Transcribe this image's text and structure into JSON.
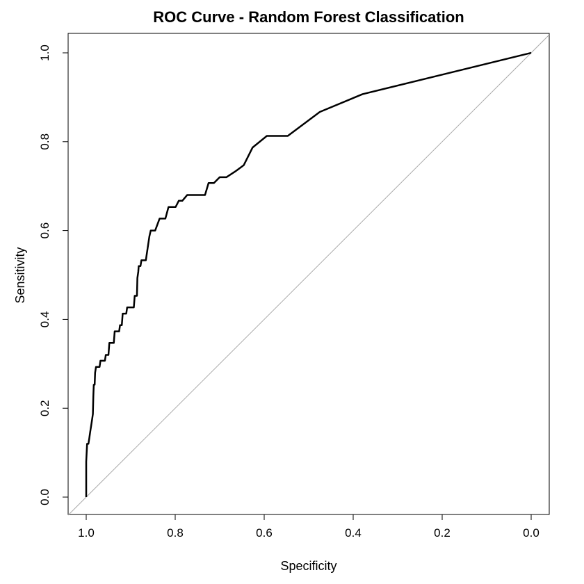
{
  "chart_data": {
    "type": "line",
    "title": "ROC Curve - Random Forest Classification",
    "xlabel": "Specificity",
    "ylabel": "Sensitivity",
    "xlim": [
      1.0,
      0.0
    ],
    "ylim": [
      0.0,
      1.0
    ],
    "x_reversed": true,
    "grid": false,
    "legend": "none",
    "x_ticks": [
      "1.0",
      "0.8",
      "0.6",
      "0.4",
      "0.2",
      "0.0"
    ],
    "y_ticks": [
      "0.0",
      "0.2",
      "0.4",
      "0.6",
      "0.8",
      "1.0"
    ],
    "reference_line": {
      "from": [
        1.0,
        0.0
      ],
      "to": [
        0.0,
        1.0
      ],
      "color": "#aaaaaa"
    },
    "series": [
      {
        "color": "#000000",
        "points": [
          [
            1.0,
            0.0
          ],
          [
            1.0,
            0.08
          ],
          [
            0.998,
            0.12
          ],
          [
            0.995,
            0.12
          ],
          [
            0.993,
            0.133
          ],
          [
            0.991,
            0.147
          ],
          [
            0.989,
            0.16
          ],
          [
            0.987,
            0.173
          ],
          [
            0.985,
            0.187
          ],
          [
            0.984,
            0.227
          ],
          [
            0.983,
            0.253
          ],
          [
            0.981,
            0.253
          ],
          [
            0.98,
            0.28
          ],
          [
            0.978,
            0.293
          ],
          [
            0.97,
            0.293
          ],
          [
            0.968,
            0.307
          ],
          [
            0.958,
            0.307
          ],
          [
            0.956,
            0.32
          ],
          [
            0.95,
            0.32
          ],
          [
            0.948,
            0.347
          ],
          [
            0.938,
            0.347
          ],
          [
            0.936,
            0.373
          ],
          [
            0.926,
            0.373
          ],
          [
            0.924,
            0.387
          ],
          [
            0.92,
            0.387
          ],
          [
            0.918,
            0.413
          ],
          [
            0.91,
            0.413
          ],
          [
            0.908,
            0.427
          ],
          [
            0.893,
            0.427
          ],
          [
            0.891,
            0.453
          ],
          [
            0.886,
            0.453
          ],
          [
            0.885,
            0.493
          ],
          [
            0.883,
            0.507
          ],
          [
            0.882,
            0.52
          ],
          [
            0.878,
            0.52
          ],
          [
            0.876,
            0.533
          ],
          [
            0.866,
            0.533
          ],
          [
            0.862,
            0.56
          ],
          [
            0.858,
            0.587
          ],
          [
            0.855,
            0.6
          ],
          [
            0.845,
            0.6
          ],
          [
            0.835,
            0.627
          ],
          [
            0.822,
            0.627
          ],
          [
            0.815,
            0.653
          ],
          [
            0.799,
            0.653
          ],
          [
            0.792,
            0.667
          ],
          [
            0.784,
            0.667
          ],
          [
            0.773,
            0.68
          ],
          [
            0.733,
            0.68
          ],
          [
            0.725,
            0.707
          ],
          [
            0.713,
            0.707
          ],
          [
            0.7,
            0.72
          ],
          [
            0.685,
            0.72
          ],
          [
            0.665,
            0.733
          ],
          [
            0.646,
            0.747
          ],
          [
            0.626,
            0.787
          ],
          [
            0.594,
            0.813
          ],
          [
            0.547,
            0.813
          ],
          [
            0.475,
            0.867
          ],
          [
            0.379,
            0.907
          ],
          [
            0.0,
            1.0
          ]
        ]
      }
    ]
  }
}
